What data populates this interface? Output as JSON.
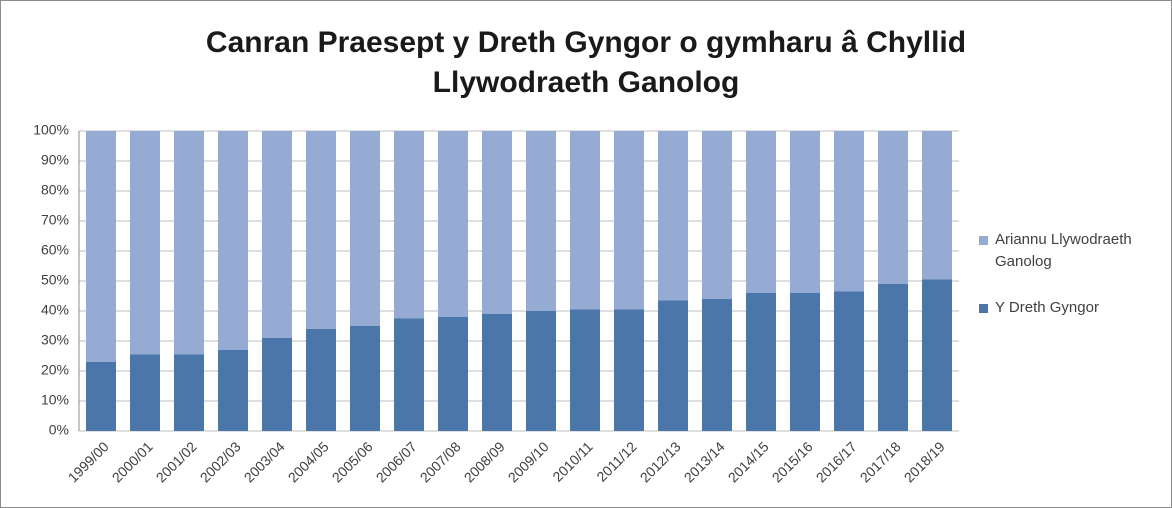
{
  "chart_data": {
    "type": "stacked_bar",
    "title": "Canran Praesept y Dreth Gyngor o gymharu â Chyllid Llywodraeth Ganolog",
    "categories": [
      "1999/00",
      "2000/01",
      "2001/02",
      "2002/03",
      "2003/04",
      "2004/05",
      "2005/06",
      "2006/07",
      "2007/08",
      "2008/09",
      "2009/10",
      "2010/11",
      "2011/12",
      "2012/13",
      "2013/14",
      "2014/15",
      "2015/16",
      "2016/17",
      "2017/18",
      "2018/19"
    ],
    "series": [
      {
        "name": "Y Dreth Gyngor",
        "color": "#4a76a9",
        "values": [
          23,
          25.5,
          25.5,
          27,
          31,
          34,
          35,
          37.5,
          38,
          39,
          40,
          40.5,
          40.5,
          43.5,
          44,
          46,
          46,
          46.5,
          49,
          50.5
        ]
      },
      {
        "name": "Ariannu Llywodraeth Ganolog",
        "color": "#95abd3",
        "values": [
          77,
          74.5,
          74.5,
          73,
          69,
          66,
          65,
          62.5,
          62,
          61,
          60,
          59.5,
          59.5,
          56.5,
          56,
          54,
          54,
          53.5,
          51,
          49.5
        ]
      }
    ],
    "ylim": [
      0,
      100
    ],
    "yticks": [
      {
        "value": 0,
        "label": "0%"
      },
      {
        "value": 10,
        "label": "10%"
      },
      {
        "value": 20,
        "label": "20%"
      },
      {
        "value": 30,
        "label": "30%"
      },
      {
        "value": 40,
        "label": "40%"
      },
      {
        "value": 50,
        "label": "50%"
      },
      {
        "value": 60,
        "label": "60%"
      },
      {
        "value": 70,
        "label": "70%"
      },
      {
        "value": 80,
        "label": "80%"
      },
      {
        "value": 90,
        "label": "90%"
      },
      {
        "value": 100,
        "label": "100%"
      }
    ],
    "grid": true,
    "legend": "right"
  }
}
